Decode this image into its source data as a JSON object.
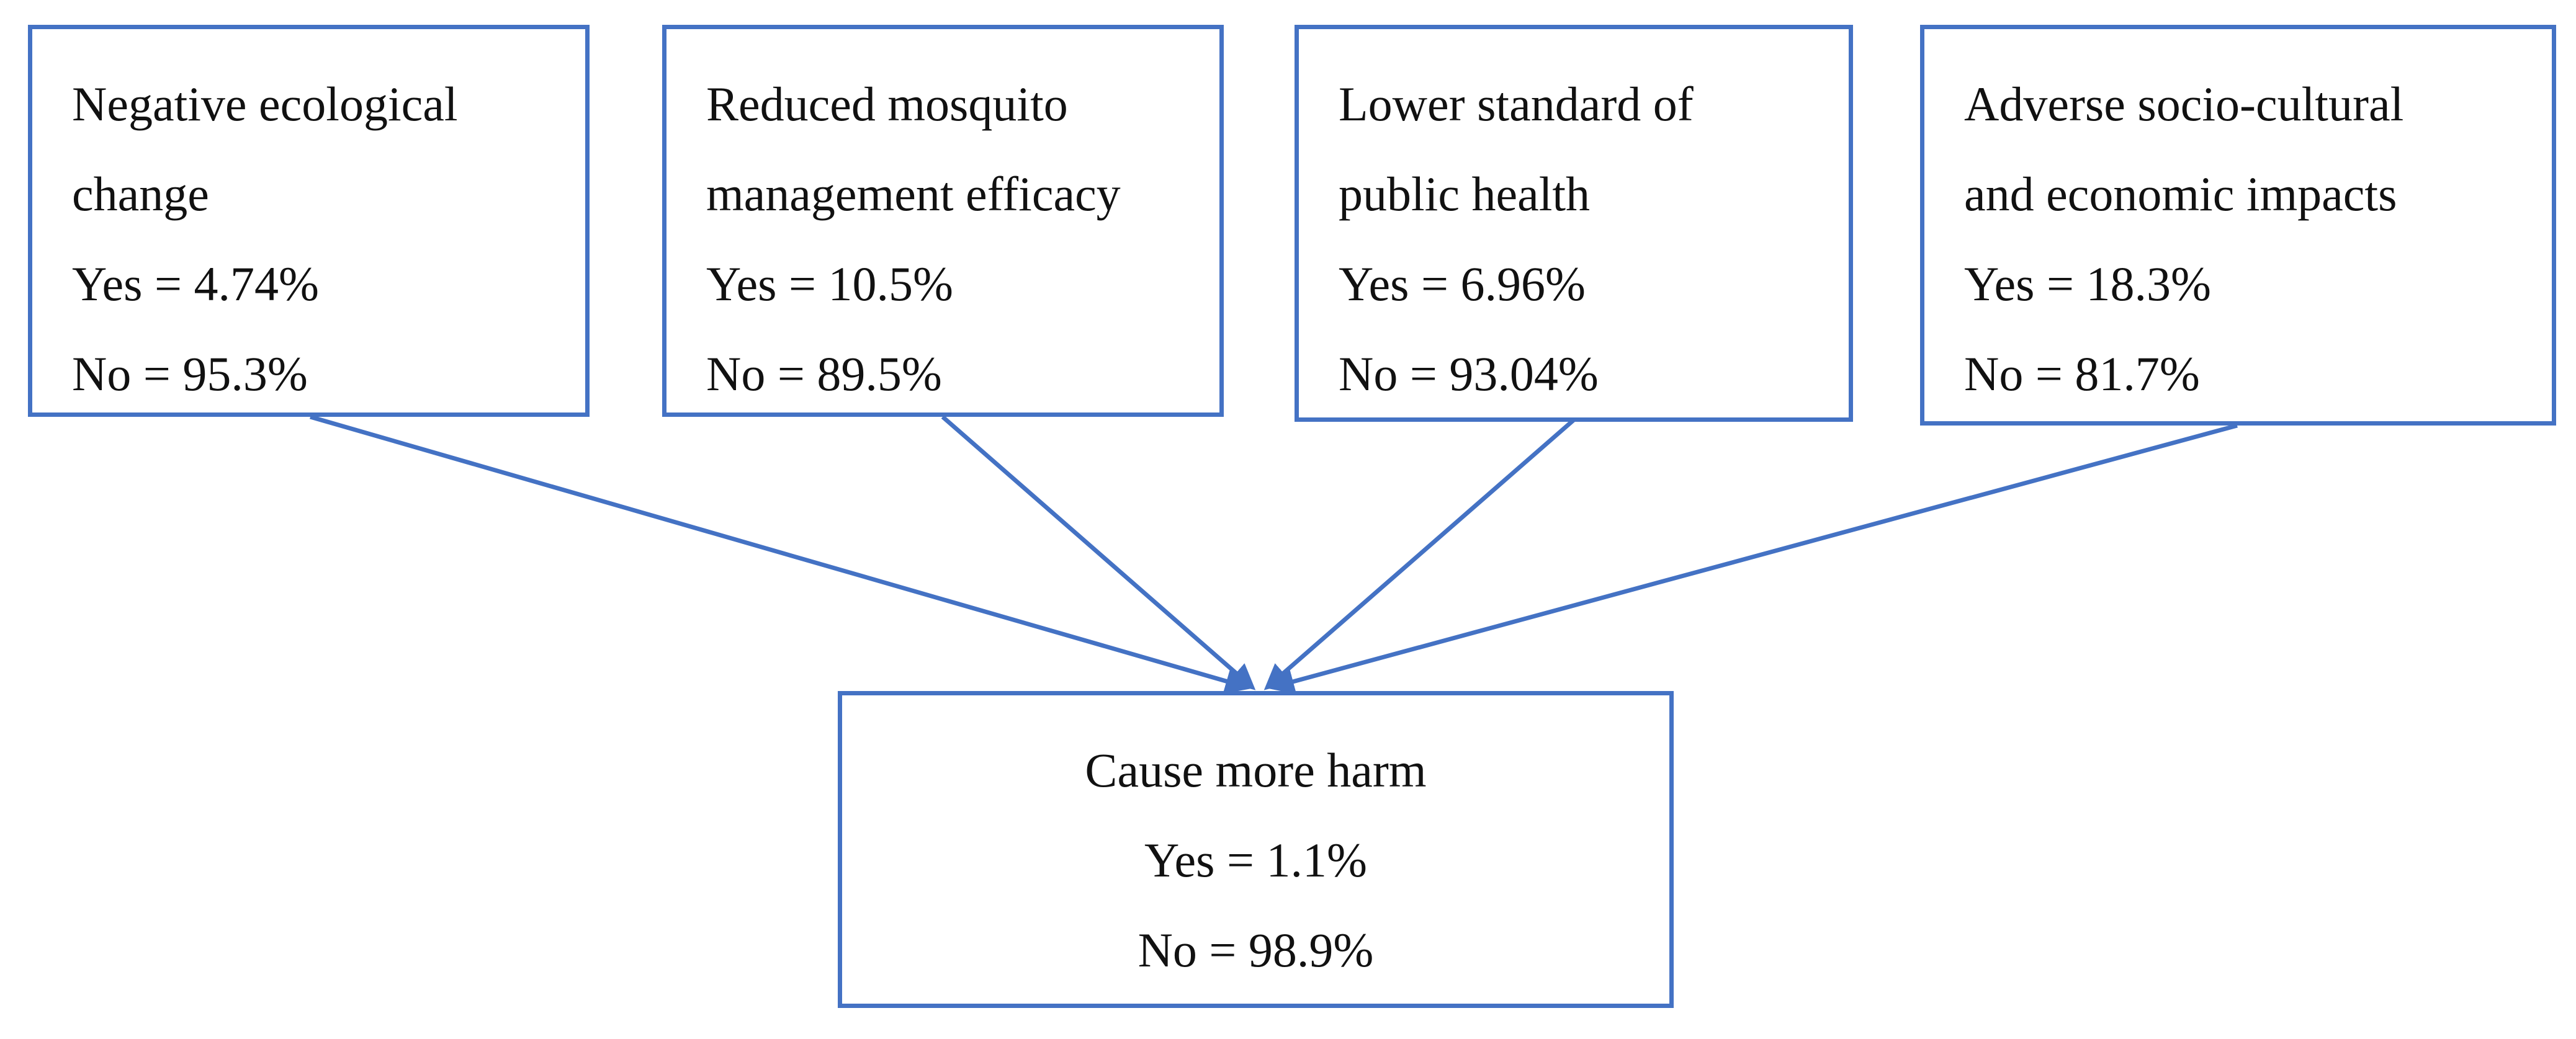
{
  "nodes": [
    {
      "label": [
        "Negative ecological",
        "change"
      ],
      "yes": "Yes = 4.74%",
      "no": "No = 95.3%"
    },
    {
      "label": [
        "Reduced mosquito",
        "management efficacy"
      ],
      "yes": "Yes = 10.5%",
      "no": "No = 89.5%"
    },
    {
      "label": [
        "Lower standard of",
        "public health"
      ],
      "yes": "Yes = 6.96%",
      "no": "No = 93.04%"
    },
    {
      "label": [
        "Adverse socio-cultural",
        "and economic impacts"
      ],
      "yes": "Yes = 18.3%",
      "no": "No = 81.7%"
    }
  ],
  "outcome": {
    "label": "Cause more harm",
    "yes": "Yes = 1.1%",
    "no": "No = 98.9%"
  }
}
